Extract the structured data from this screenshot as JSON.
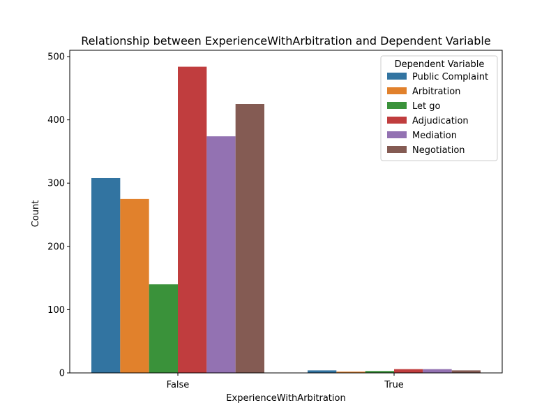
{
  "chart_data": {
    "type": "bar",
    "title": "Relationship between ExperienceWithArbitration and Dependent Variable",
    "xlabel": "ExperienceWithArbitration",
    "ylabel": "Count",
    "categories": [
      "False",
      "True"
    ],
    "ylim": [
      0,
      510
    ],
    "yticks": [
      0,
      100,
      200,
      300,
      400,
      500
    ],
    "legend": {
      "title": "Dependent Variable",
      "placement": "top-right"
    },
    "series": [
      {
        "name": "Public Complaint",
        "color": "#3274a1",
        "values": [
          308,
          4
        ]
      },
      {
        "name": "Arbitration",
        "color": "#e1812c",
        "values": [
          275,
          2
        ]
      },
      {
        "name": "Let go",
        "color": "#3a923a",
        "values": [
          140,
          3
        ]
      },
      {
        "name": "Adjudication",
        "color": "#c03d3e",
        "values": [
          484,
          6
        ]
      },
      {
        "name": "Mediation",
        "color": "#9372b2",
        "values": [
          374,
          6
        ]
      },
      {
        "name": "Negotiation",
        "color": "#845b53",
        "values": [
          425,
          4
        ]
      }
    ],
    "grid": false
  }
}
